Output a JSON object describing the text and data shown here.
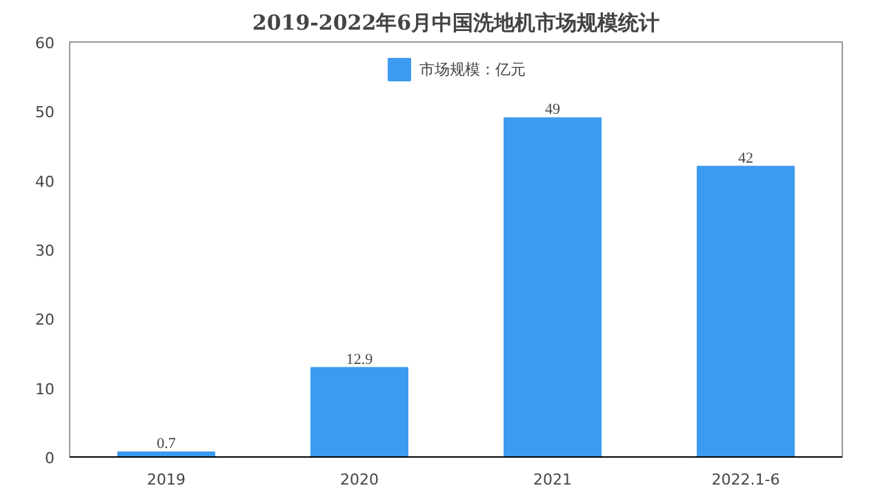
{
  "chart_data": {
    "type": "bar",
    "title": "2019-2022年6月中国洗地机市场规模统计",
    "categories": [
      "2019",
      "2020",
      "2021",
      "2022.1-6"
    ],
    "series": [
      {
        "name": "市场规模：亿元",
        "color": "#3c9af0",
        "values": [
          0.7,
          12.9,
          49,
          42
        ]
      }
    ],
    "ylim": [
      0,
      60
    ],
    "yticks": [
      0,
      10,
      20,
      30,
      40,
      50,
      60
    ],
    "legend": "top",
    "data_labels": true
  }
}
